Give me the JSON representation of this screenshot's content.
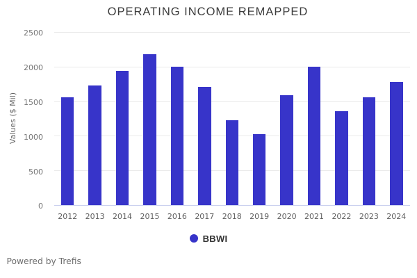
{
  "chart_data": {
    "type": "bar",
    "title": "OPERATING INCOME REMAPPED",
    "ylabel": "Values ($ Mil)",
    "xlabel": "",
    "categories": [
      "2012",
      "2013",
      "2014",
      "2015",
      "2016",
      "2017",
      "2018",
      "2019",
      "2020",
      "2021",
      "2022",
      "2023",
      "2024"
    ],
    "series": [
      {
        "name": "BBWI",
        "color": "#3734c9",
        "values": [
          1560,
          1735,
          1945,
          2180,
          2000,
          1715,
          1230,
          1030,
          1595,
          2000,
          1360,
          1565,
          1785
        ]
      }
    ],
    "ylim": [
      0,
      2500
    ],
    "yticks": [
      0,
      500,
      1000,
      1500,
      2000,
      2500
    ],
    "grid": true,
    "legend_position": "bottom"
  },
  "legend": {
    "label": "BBWI",
    "dot_color": "#3734c9"
  },
  "footer": {
    "text": "Powered by Trefis"
  }
}
